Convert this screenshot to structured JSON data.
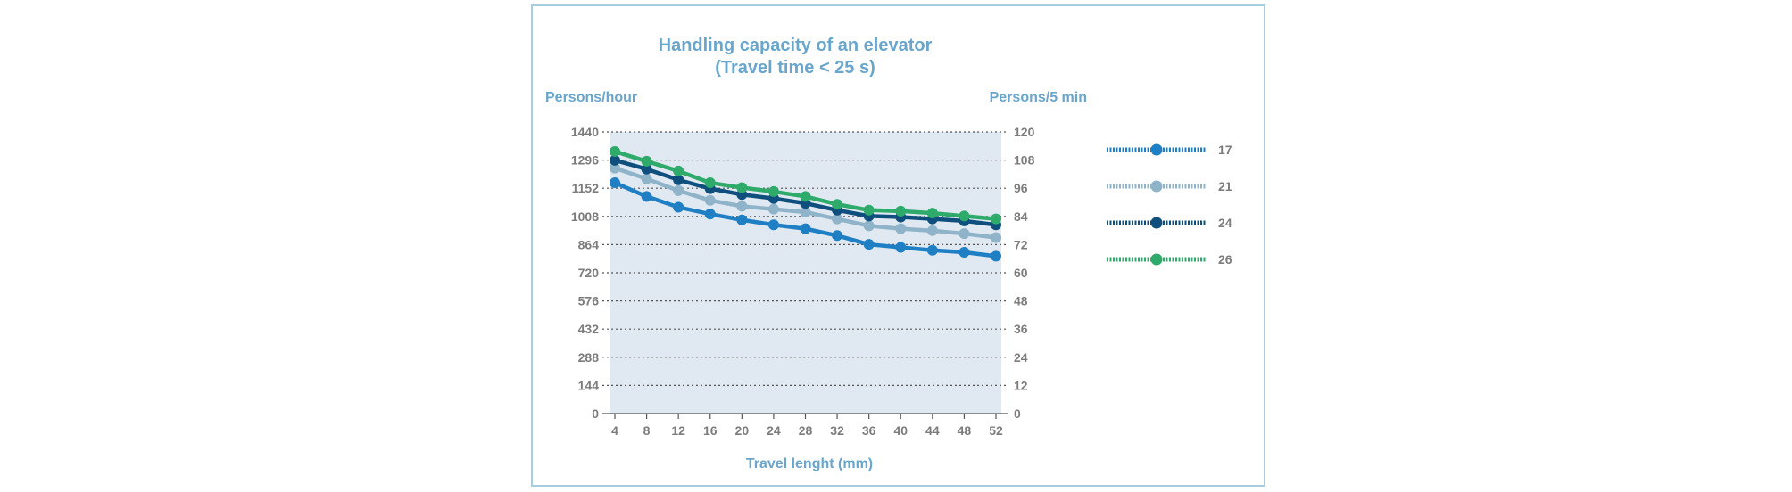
{
  "chart_data": {
    "type": "line",
    "title": "Handling capacity of an elevator",
    "subtitle": "(Travel time < 25 s)",
    "ylabel": "Persons/hour",
    "ylabel_right": "Persons/5 min",
    "xlabel": "Travel lenght (mm)",
    "x": [
      4,
      8,
      12,
      16,
      20,
      24,
      28,
      32,
      36,
      40,
      44,
      48,
      52
    ],
    "ylim": [
      0,
      1440
    ],
    "yticks": [
      0,
      144,
      288,
      432,
      576,
      720,
      864,
      1008,
      1152,
      1296,
      1440
    ],
    "ylim_right": [
      0,
      120
    ],
    "yticks_right": [
      0,
      12,
      24,
      36,
      48,
      60,
      72,
      84,
      96,
      108,
      120
    ],
    "grid": true,
    "legend_position": "right",
    "series": [
      {
        "name": "17",
        "color": "#1f7fc4",
        "values": [
          1180,
          1110,
          1055,
          1020,
          990,
          965,
          945,
          910,
          865,
          850,
          835,
          825,
          805
        ]
      },
      {
        "name": "21",
        "color": "#8fb3c9",
        "values": [
          1255,
          1200,
          1140,
          1090,
          1060,
          1045,
          1030,
          995,
          960,
          945,
          935,
          920,
          900
        ]
      },
      {
        "name": "24",
        "color": "#0e4f7d",
        "values": [
          1295,
          1250,
          1195,
          1150,
          1120,
          1100,
          1075,
          1040,
          1010,
          1005,
          995,
          985,
          965
        ]
      },
      {
        "name": "26",
        "color": "#2eaa6a",
        "values": [
          1340,
          1290,
          1240,
          1180,
          1155,
          1135,
          1110,
          1070,
          1040,
          1035,
          1025,
          1010,
          995
        ]
      }
    ]
  }
}
